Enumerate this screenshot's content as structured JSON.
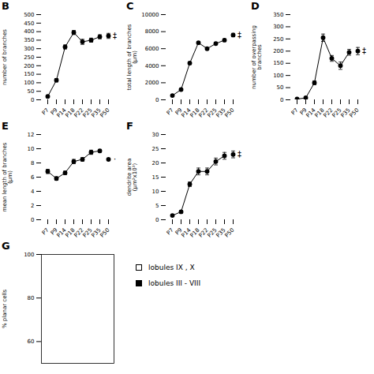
{
  "chart_data": [
    {
      "type": "line",
      "title": "B",
      "categories": [
        "P7",
        "P9",
        "P14",
        "P18",
        "P22",
        "P25",
        "P35",
        "P50"
      ],
      "ylabel": "number of branches",
      "ylim": [
        0,
        500
      ],
      "yticks": [
        0,
        50,
        100,
        150,
        200,
        250,
        300,
        350,
        400,
        450,
        500
      ],
      "color": "black",
      "series": [
        {
          "type": "line",
          "marker": "o",
          "values": [
            20,
            115,
            310,
            395,
            340,
            350,
            370,
            null
          ],
          "errors": [
            4,
            10,
            12,
            12,
            15,
            12,
            12,
            null
          ]
        },
        {
          "type": "scatter",
          "marker": "o",
          "values": [
            null,
            null,
            null,
            null,
            null,
            null,
            null,
            375
          ],
          "errors": [
            null,
            null,
            null,
            null,
            null,
            null,
            null,
            15
          ]
        }
      ],
      "annotations": [
        {
          "text": "‡",
          "x": "P50",
          "y": 375
        }
      ]
    },
    {
      "type": "line",
      "title": "C",
      "categories": [
        "P7",
        "P9",
        "P14",
        "P18",
        "P22",
        "P25",
        "P35",
        "P50"
      ],
      "ylabel": "total length of branches\n(μm)",
      "ylim": [
        0,
        10000
      ],
      "yticks": [
        0,
        2000,
        4000,
        6000,
        8000,
        10000
      ],
      "color": "black",
      "series": [
        {
          "type": "line",
          "marker": "o",
          "values": [
            500,
            1200,
            4300,
            6700,
            6000,
            6600,
            7000,
            null
          ],
          "errors": [
            50,
            80,
            150,
            150,
            120,
            120,
            150,
            null
          ]
        },
        {
          "type": "scatter",
          "marker": "o",
          "values": [
            null,
            null,
            null,
            null,
            null,
            null,
            null,
            7600
          ],
          "errors": [
            null,
            null,
            null,
            null,
            null,
            null,
            null,
            200
          ]
        }
      ],
      "annotations": [
        {
          "text": "‡",
          "x": "P50",
          "y": 7600
        }
      ]
    },
    {
      "type": "line",
      "title": "D",
      "categories": [
        "P7",
        "P9",
        "P14",
        "P18",
        "P22",
        "P25",
        "P35",
        "P50"
      ],
      "ylabel": "number of overpassing\nbranches",
      "ylim": [
        0,
        350
      ],
      "yticks": [
        0,
        50,
        100,
        150,
        200,
        250,
        300,
        350
      ],
      "color": "black",
      "series": [
        {
          "type": "line",
          "marker": "o",
          "values": [
            3,
            8,
            70,
            255,
            170,
            140,
            195,
            null
          ],
          "errors": [
            1,
            2,
            8,
            15,
            12,
            15,
            12,
            null
          ]
        },
        {
          "type": "scatter",
          "marker": "o",
          "values": [
            null,
            null,
            null,
            null,
            null,
            null,
            null,
            200
          ],
          "errors": [
            null,
            null,
            null,
            null,
            null,
            null,
            null,
            15
          ]
        }
      ],
      "annotations": [
        {
          "text": "‡",
          "x": "P50",
          "y": 200
        }
      ]
    },
    {
      "type": "line",
      "title": "E",
      "categories": [
        "P7",
        "P9",
        "P14",
        "P18",
        "P22",
        "P25",
        "P35",
        "P50"
      ],
      "ylabel": "mean length of branches\n(μm)",
      "ylim": [
        0,
        12
      ],
      "yticks": [
        0,
        2,
        4,
        6,
        8,
        10,
        12
      ],
      "color": "black",
      "series": [
        {
          "type": "line",
          "marker": "o",
          "values": [
            6.8,
            5.8,
            6.6,
            8.2,
            8.5,
            9.5,
            9.7,
            null
          ],
          "errors": [
            0.3,
            0.25,
            0.25,
            0.3,
            0.25,
            0.3,
            0.2,
            null
          ]
        },
        {
          "type": "scatter",
          "marker": "o",
          "values": [
            null,
            null,
            null,
            null,
            null,
            null,
            null,
            8.5
          ],
          "errors": [
            null,
            null,
            null,
            null,
            null,
            null,
            null,
            0.0
          ]
        }
      ],
      "annotations": [
        {
          "text": "·",
          "x": "P50",
          "y": 8.5
        }
      ]
    },
    {
      "type": "line",
      "title": "F",
      "categories": [
        "P7",
        "P9",
        "P14",
        "P18",
        "P22",
        "P25",
        "P35",
        "P50"
      ],
      "ylabel": "dendrite area\n(μm²x10³)",
      "ylim": [
        0,
        30
      ],
      "yticks": [
        0,
        5,
        10,
        15,
        20,
        25,
        30
      ],
      "color": "black",
      "series": [
        {
          "type": "line",
          "marker": "o",
          "values": [
            1.5,
            2.8,
            12.5,
            17.0,
            17.0,
            20.5,
            22.5,
            null
          ],
          "errors": [
            0.3,
            0.4,
            0.8,
            1.2,
            1.2,
            1.2,
            1.2,
            null
          ]
        },
        {
          "type": "scatter",
          "marker": "o",
          "values": [
            null,
            null,
            null,
            null,
            null,
            null,
            null,
            23.0
          ],
          "errors": [
            null,
            null,
            null,
            null,
            null,
            null,
            null,
            1.2
          ]
        }
      ],
      "annotations": [
        {
          "text": "‡",
          "x": "P50",
          "y": 23.0
        }
      ]
    },
    {
      "type": "bar",
      "title": "G",
      "categories": [],
      "ylabel": "% planar cells",
      "ylim": [
        50,
        100
      ],
      "yticks": [
        60,
        80,
        100
      ],
      "tick_labels": "y",
      "legend": "right",
      "series": [
        {
          "name": "lobules IX , X",
          "marker": "open_square",
          "values": []
        },
        {
          "name": "lobules III - VIII",
          "marker": "square",
          "values": []
        }
      ]
    }
  ]
}
